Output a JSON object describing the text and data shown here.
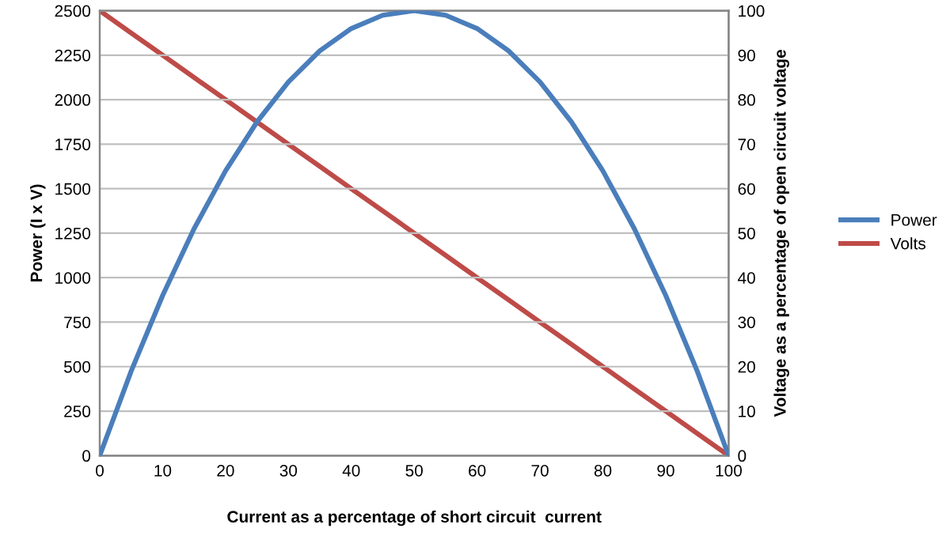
{
  "chart_data": {
    "type": "line",
    "xlabel": "Current as a percentage of short circuit  current",
    "ylabel": "Power (I x V)",
    "y2label": "Voltage as a percentage of open circuit voltage",
    "x": [
      0,
      5,
      10,
      15,
      20,
      25,
      30,
      35,
      40,
      45,
      50,
      55,
      60,
      65,
      70,
      75,
      80,
      85,
      90,
      95,
      100
    ],
    "series": [
      {
        "name": "Power",
        "color": "#4a7ebb",
        "values": [
          0,
          475,
          900,
          1275,
          1600,
          1875,
          2100,
          2275,
          2400,
          2475,
          2500,
          2475,
          2400,
          2275,
          2100,
          1875,
          1600,
          1275,
          900,
          475,
          0
        ]
      },
      {
        "name": "Volts",
        "color": "#be4b48",
        "axis": "y2",
        "values": [
          100,
          95,
          90,
          85,
          80,
          75,
          70,
          65,
          60,
          55,
          50,
          45,
          40,
          35,
          30,
          25,
          20,
          15,
          10,
          5,
          0
        ]
      }
    ],
    "xlim": [
      0,
      100
    ],
    "xticks": [
      0,
      10,
      20,
      30,
      40,
      50,
      60,
      70,
      80,
      90,
      100
    ],
    "ylim": [
      0,
      2500
    ],
    "yticks": [
      0,
      250,
      500,
      750,
      1000,
      1250,
      1500,
      1750,
      2000,
      2250,
      2500
    ],
    "y2lim": [
      0,
      100
    ],
    "y2ticks": [
      0,
      10,
      20,
      30,
      40,
      50,
      60,
      70,
      80,
      90,
      100
    ],
    "grid": "y",
    "legend": "right",
    "marker": "none",
    "line_style": "solid"
  }
}
